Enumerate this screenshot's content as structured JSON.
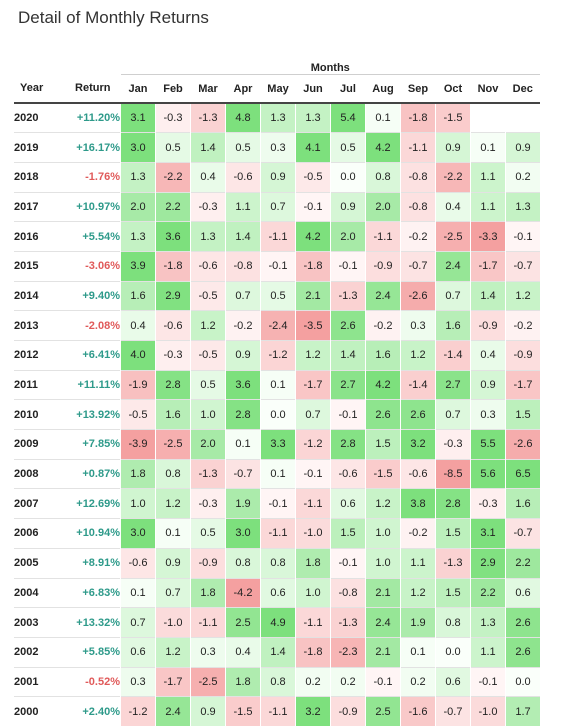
{
  "title": "Detail of Monthly Returns",
  "headers": {
    "group": "Months",
    "year": "Year",
    "return": "Return",
    "months": [
      "Jan",
      "Feb",
      "Mar",
      "Apr",
      "May",
      "Jun",
      "Jul",
      "Aug",
      "Sep",
      "Oct",
      "Nov",
      "Dec"
    ]
  },
  "colors": {
    "positive_text": "#2e9a8a",
    "negative_text": "#e05a5a",
    "positive_cell": "#7de07d",
    "negative_cell": "#f4a0a0"
  },
  "rows": [
    {
      "year": "2020",
      "ret": "+11.20%",
      "vals": [
        "3.1",
        "-0.3",
        "-1.3",
        "4.8",
        "1.3",
        "1.3",
        "5.4",
        "0.1",
        "-1.8",
        "-1.5",
        "",
        ""
      ]
    },
    {
      "year": "2019",
      "ret": "+16.17%",
      "vals": [
        "3.0",
        "0.5",
        "1.4",
        "0.5",
        "0.3",
        "4.1",
        "0.5",
        "4.2",
        "-1.1",
        "0.9",
        "0.1",
        "0.9"
      ]
    },
    {
      "year": "2018",
      "ret": "-1.76%",
      "vals": [
        "1.3",
        "-2.2",
        "0.4",
        "-0.6",
        "0.9",
        "-0.5",
        "0.0",
        "0.8",
        "-0.8",
        "-2.2",
        "1.1",
        "0.2"
      ]
    },
    {
      "year": "2017",
      "ret": "+10.97%",
      "vals": [
        "2.0",
        "2.2",
        "-0.3",
        "1.1",
        "0.7",
        "-0.1",
        "0.9",
        "2.0",
        "-0.8",
        "0.4",
        "1.1",
        "1.3"
      ]
    },
    {
      "year": "2016",
      "ret": "+5.54%",
      "vals": [
        "1.3",
        "3.6",
        "1.3",
        "1.4",
        "-1.1",
        "4.2",
        "2.0",
        "-1.1",
        "-0.2",
        "-2.5",
        "-3.3",
        "-0.1"
      ]
    },
    {
      "year": "2015",
      "ret": "-3.06%",
      "vals": [
        "3.9",
        "-1.8",
        "-0.6",
        "-0.8",
        "-0.1",
        "-1.8",
        "-0.1",
        "-0.9",
        "-0.7",
        "2.4",
        "-1.7",
        "-0.7"
      ]
    },
    {
      "year": "2014",
      "ret": "+9.40%",
      "vals": [
        "1.6",
        "2.9",
        "-0.5",
        "0.7",
        "0.5",
        "2.1",
        "-1.3",
        "2.4",
        "-2.6",
        "0.7",
        "1.4",
        "1.2"
      ]
    },
    {
      "year": "2013",
      "ret": "-2.08%",
      "vals": [
        "0.4",
        "-0.6",
        "1.2",
        "-0.2",
        "-2.4",
        "-3.5",
        "2.6",
        "-0.2",
        "0.3",
        "1.6",
        "-0.9",
        "-0.2"
      ]
    },
    {
      "year": "2012",
      "ret": "+6.41%",
      "vals": [
        "4.0",
        "-0.3",
        "-0.5",
        "0.9",
        "-1.2",
        "1.2",
        "1.4",
        "1.6",
        "1.2",
        "-1.4",
        "0.4",
        "-0.9"
      ]
    },
    {
      "year": "2011",
      "ret": "+11.11%",
      "vals": [
        "-1.9",
        "2.8",
        "0.5",
        "3.6",
        "0.1",
        "-1.7",
        "2.7",
        "4.2",
        "-1.4",
        "2.7",
        "0.9",
        "-1.7"
      ]
    },
    {
      "year": "2010",
      "ret": "+13.92%",
      "vals": [
        "-0.5",
        "1.6",
        "1.0",
        "2.8",
        "0.0",
        "0.7",
        "-0.1",
        "2.6",
        "2.6",
        "0.7",
        "0.3",
        "1.5"
      ]
    },
    {
      "year": "2009",
      "ret": "+7.85%",
      "vals": [
        "-3.9",
        "-2.5",
        "2.0",
        "0.1",
        "3.3",
        "-1.2",
        "2.8",
        "1.5",
        "3.2",
        "-0.3",
        "5.5",
        "-2.6"
      ]
    },
    {
      "year": "2008",
      "ret": "+0.87%",
      "vals": [
        "1.8",
        "0.8",
        "-1.3",
        "-0.7",
        "0.1",
        "-0.1",
        "-0.6",
        "-1.5",
        "-0.6",
        "-8.5",
        "5.6",
        "6.5"
      ]
    },
    {
      "year": "2007",
      "ret": "+12.69%",
      "vals": [
        "1.0",
        "1.2",
        "-0.3",
        "1.9",
        "-0.1",
        "-1.1",
        "0.6",
        "1.2",
        "3.8",
        "2.8",
        "-0.3",
        "1.6"
      ]
    },
    {
      "year": "2006",
      "ret": "+10.94%",
      "vals": [
        "3.0",
        "0.1",
        "0.5",
        "3.0",
        "-1.1",
        "-1.0",
        "1.5",
        "1.0",
        "-0.2",
        "1.5",
        "3.1",
        "-0.7"
      ]
    },
    {
      "year": "2005",
      "ret": "+8.91%",
      "vals": [
        "-0.6",
        "0.9",
        "-0.9",
        "0.8",
        "0.8",
        "1.8",
        "-0.1",
        "1.0",
        "1.1",
        "-1.3",
        "2.9",
        "2.2"
      ]
    },
    {
      "year": "2004",
      "ret": "+6.83%",
      "vals": [
        "0.1",
        "0.7",
        "1.8",
        "-4.2",
        "0.6",
        "1.0",
        "-0.8",
        "2.1",
        "1.2",
        "1.5",
        "2.2",
        "0.6"
      ]
    },
    {
      "year": "2003",
      "ret": "+13.32%",
      "vals": [
        "0.7",
        "-1.0",
        "-1.1",
        "2.5",
        "4.9",
        "-1.1",
        "-1.3",
        "2.4",
        "1.9",
        "0.8",
        "1.3",
        "2.6"
      ]
    },
    {
      "year": "2002",
      "ret": "+5.85%",
      "vals": [
        "0.6",
        "1.2",
        "0.3",
        "0.4",
        "1.4",
        "-1.8",
        "-2.3",
        "2.1",
        "0.1",
        "0.0",
        "1.1",
        "2.6"
      ]
    },
    {
      "year": "2001",
      "ret": "-0.52%",
      "vals": [
        "0.3",
        "-1.7",
        "-2.5",
        "1.8",
        "0.8",
        "0.2",
        "0.2",
        "-0.1",
        "0.2",
        "0.6",
        "-0.1",
        "0.0"
      ]
    },
    {
      "year": "2000",
      "ret": "+2.40%",
      "vals": [
        "-1.2",
        "2.4",
        "0.9",
        "-1.5",
        "-1.1",
        "3.2",
        "-0.9",
        "2.5",
        "-1.6",
        "-0.7",
        "-1.0",
        "1.7"
      ]
    }
  ]
}
